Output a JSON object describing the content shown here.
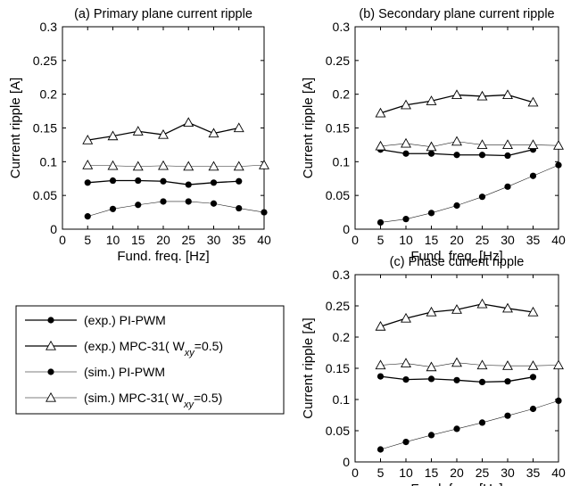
{
  "chart_data": [
    {
      "type": "line",
      "title": "(a) Primary plane current ripple",
      "xlabel": "Fund. freq. [Hz]",
      "ylabel": "Current ripple [A]",
      "xlim": [
        0,
        40
      ],
      "ylim": [
        0,
        0.3
      ],
      "xticks": [
        "0",
        "5",
        "10",
        "15",
        "20",
        "25",
        "30",
        "35",
        "40"
      ],
      "yticks": [
        "0",
        "0.05",
        "0.1",
        "0.15",
        "0.2",
        "0.25",
        "0.3"
      ],
      "grid": false,
      "series": [
        {
          "name": "(exp.) PI-PWM",
          "x": [
            5,
            10,
            15,
            20,
            25,
            30,
            35
          ],
          "y": [
            0.069,
            0.072,
            0.072,
            0.071,
            0.066,
            0.069,
            0.071
          ]
        },
        {
          "name": "(exp.) MPC-31",
          "x": [
            5,
            10,
            15,
            20,
            25,
            30,
            35
          ],
          "y": [
            0.132,
            0.138,
            0.145,
            0.14,
            0.158,
            0.142,
            0.15
          ]
        },
        {
          "name": "(sim.) PI-PWM",
          "x": [
            5,
            10,
            15,
            20,
            25,
            30,
            35,
            40
          ],
          "y": [
            0.019,
            0.03,
            0.036,
            0.041,
            0.041,
            0.038,
            0.031,
            0.025
          ]
        },
        {
          "name": "(sim.) MPC-31",
          "x": [
            5,
            10,
            15,
            20,
            25,
            30,
            35,
            40
          ],
          "y": [
            0.095,
            0.094,
            0.093,
            0.094,
            0.093,
            0.093,
            0.093,
            0.095
          ]
        }
      ]
    },
    {
      "type": "line",
      "title": "(b) Secondary  plane current ripple",
      "xlabel": "Fund. freq. [Hz]",
      "ylabel": "Current ripple [A]",
      "xlim": [
        0,
        40
      ],
      "ylim": [
        0,
        0.3
      ],
      "xticks": [
        "0",
        "5",
        "10",
        "15",
        "20",
        "25",
        "30",
        "35",
        "40"
      ],
      "yticks": [
        "0",
        "0.05",
        "0.1",
        "0.15",
        "0.2",
        "0.25",
        "0.3"
      ],
      "grid": false,
      "series": [
        {
          "name": "(exp.) PI-PWM",
          "x": [
            5,
            10,
            15,
            20,
            25,
            30,
            35
          ],
          "y": [
            0.118,
            0.112,
            0.112,
            0.11,
            0.11,
            0.109,
            0.118
          ]
        },
        {
          "name": "(exp.) MPC-31",
          "x": [
            5,
            10,
            15,
            20,
            25,
            30,
            35
          ],
          "y": [
            0.172,
            0.184,
            0.19,
            0.199,
            0.197,
            0.199,
            0.188
          ]
        },
        {
          "name": "(sim.) PI-PWM",
          "x": [
            5,
            10,
            15,
            20,
            25,
            30,
            35,
            40
          ],
          "y": [
            0.01,
            0.015,
            0.024,
            0.035,
            0.048,
            0.063,
            0.079,
            0.095
          ]
        },
        {
          "name": "(sim.) MPC-31",
          "x": [
            5,
            10,
            15,
            20,
            25,
            30,
            35,
            40
          ],
          "y": [
            0.123,
            0.127,
            0.122,
            0.13,
            0.125,
            0.125,
            0.125,
            0.124
          ]
        }
      ]
    },
    {
      "type": "line",
      "title": "(c) Phase current ripple",
      "xlabel": "Fund. freq. [Hz]",
      "ylabel": "Current ripple [A]",
      "xlim": [
        0,
        40
      ],
      "ylim": [
        0,
        0.3
      ],
      "xticks": [
        "0",
        "5",
        "10",
        "15",
        "20",
        "25",
        "30",
        "35",
        "40"
      ],
      "yticks": [
        "0",
        "0.05",
        "0.1",
        "0.15",
        "0.2",
        "0.25",
        "0.3"
      ],
      "grid": false,
      "series": [
        {
          "name": "(exp.) PI-PWM",
          "x": [
            5,
            10,
            15,
            20,
            25,
            30,
            35
          ],
          "y": [
            0.137,
            0.132,
            0.133,
            0.131,
            0.128,
            0.129,
            0.136
          ]
        },
        {
          "name": "(exp.) MPC-31",
          "x": [
            5,
            10,
            15,
            20,
            25,
            30,
            35
          ],
          "y": [
            0.217,
            0.23,
            0.24,
            0.244,
            0.253,
            0.246,
            0.24
          ]
        },
        {
          "name": "(sim.) PI-PWM",
          "x": [
            5,
            10,
            15,
            20,
            25,
            30,
            35,
            40
          ],
          "y": [
            0.02,
            0.032,
            0.043,
            0.053,
            0.063,
            0.074,
            0.085,
            0.098
          ]
        },
        {
          "name": "(sim.) MPC-31",
          "x": [
            5,
            10,
            15,
            20,
            25,
            30,
            35,
            40
          ],
          "y": [
            0.155,
            0.158,
            0.152,
            0.159,
            0.155,
            0.154,
            0.154,
            0.155
          ]
        }
      ]
    }
  ],
  "legend": {
    "placement": "left-middle",
    "entries": [
      {
        "text": "(exp.) PI-PWM",
        "marker": "filled-circle",
        "line": "solid-thick",
        "sub": ""
      },
      {
        "text": "(exp.) MPC-31( W",
        "marker": "open-triangle",
        "line": "solid-thick",
        "sub": "xy",
        "tail": "=0.5)"
      },
      {
        "text": "(sim.) PI-PWM",
        "marker": "filled-circle",
        "line": "solid-thin",
        "sub": ""
      },
      {
        "text": "(sim.) MPC-31( W",
        "marker": "open-triangle",
        "line": "solid-thin",
        "sub": "xy",
        "tail": "=0.5)"
      }
    ]
  }
}
